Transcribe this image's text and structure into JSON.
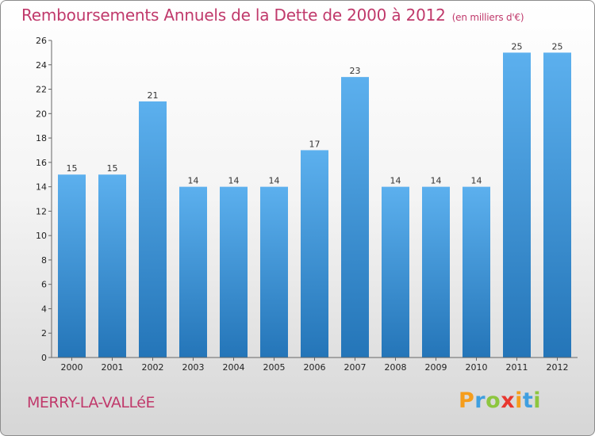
{
  "header": {
    "title": "Remboursements Annuels de la Dette de 2000 à 2012",
    "subtitle": "(en milliers d'€)"
  },
  "footer": {
    "place": "MERRY-LA-VALLéE",
    "logo": {
      "letters": [
        "P",
        "r",
        "o",
        "x",
        "i",
        "t",
        "i"
      ],
      "colors": [
        "#f59d1c",
        "#3f9fe0",
        "#8dc63f",
        "#e8372f",
        "#f59d1c",
        "#3f9fe0",
        "#8dc63f"
      ]
    }
  },
  "colors": {
    "bar": "#3a8fd6",
    "bar_light": "#5cb0ee",
    "accent": "#c0396b"
  },
  "chart_data": {
    "type": "bar",
    "categories": [
      "2000",
      "2001",
      "2002",
      "2003",
      "2004",
      "2005",
      "2006",
      "2007",
      "2008",
      "2009",
      "2010",
      "2011",
      "2012"
    ],
    "values": [
      15,
      15,
      21,
      14,
      14,
      14,
      17,
      23,
      14,
      14,
      14,
      25,
      25
    ],
    "title": "Remboursements Annuels de la Dette de 2000 à 2012",
    "subtitle": "(en milliers d'€)",
    "xlabel": "",
    "ylabel": "",
    "ylim": [
      0,
      26
    ],
    "yticks": [
      0,
      2,
      4,
      6,
      8,
      10,
      12,
      14,
      16,
      18,
      20,
      22,
      24,
      26
    ],
    "grid": false,
    "legend": "none"
  }
}
